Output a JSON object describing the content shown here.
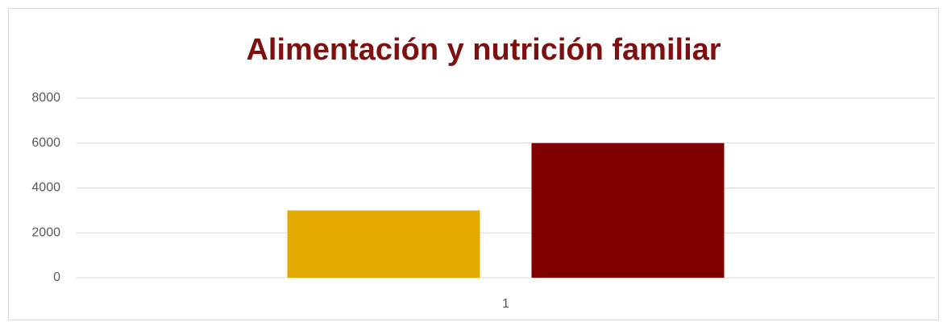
{
  "chart_data": {
    "type": "bar",
    "title": "Alimentación y nutrición familiar",
    "categories": [
      "1"
    ],
    "series": [
      {
        "color": "#e3aa00",
        "values": [
          3000
        ]
      },
      {
        "color": "#800000",
        "values": [
          6000
        ]
      }
    ],
    "ylim": [
      0,
      8000
    ],
    "yticks": [
      0,
      2000,
      4000,
      6000,
      8000
    ],
    "grid": true,
    "title_color": "#7f1010"
  }
}
